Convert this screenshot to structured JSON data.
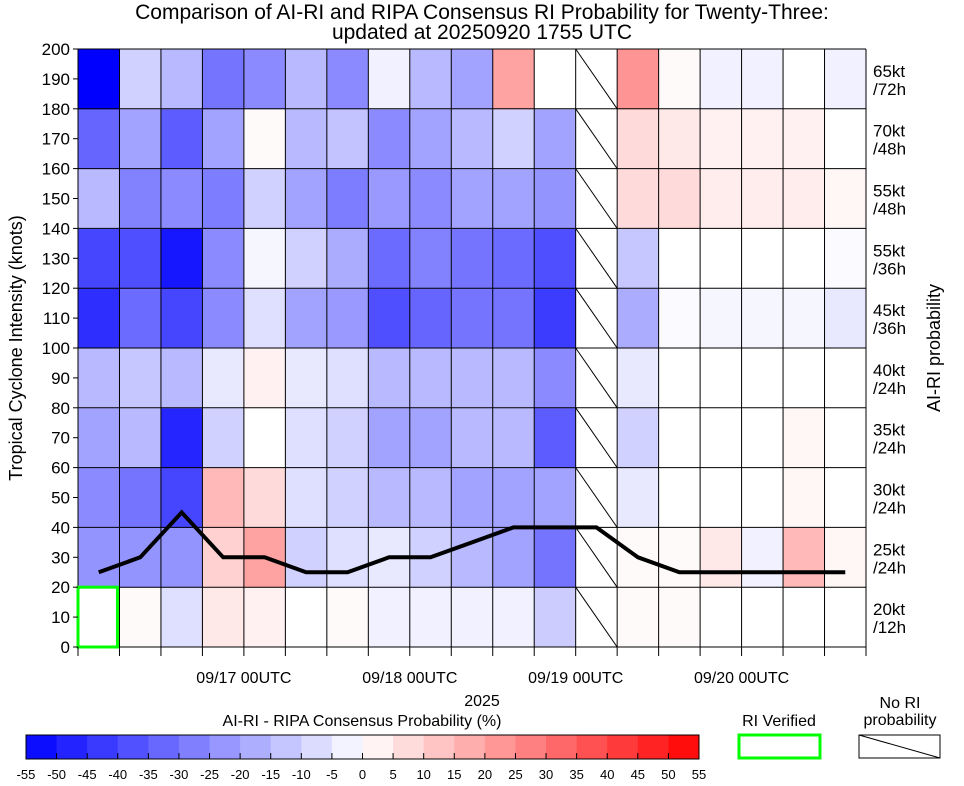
{
  "chart_data": {
    "type": "heatmap",
    "title": "Comparison of AI-RI and RIPA Consensus RI Probability for Twenty-Three:",
    "subtitle": "updated at 20250920 1755 UTC",
    "ylabel": "Tropical Cyclone Intensity (knots)",
    "ylim": [
      0,
      200
    ],
    "y_ticks": [
      0,
      10,
      20,
      30,
      40,
      50,
      60,
      70,
      80,
      90,
      100,
      110,
      120,
      130,
      140,
      150,
      160,
      170,
      180,
      190,
      200
    ],
    "xlabel": "2025",
    "x_tick_labels": [
      {
        "col": 4,
        "label": "09/17 00UTC"
      },
      {
        "col": 8,
        "label": "09/18 00UTC"
      },
      {
        "col": 12,
        "label": "09/19 00UTC"
      },
      {
        "col": 16,
        "label": "09/20 00UTC"
      }
    ],
    "n_columns": 19,
    "right_axis_label": "AI-RI probability",
    "rows": [
      {
        "label_line1": "20kt",
        "label_line2": "/12h"
      },
      {
        "label_line1": "25kt",
        "label_line2": "/24h"
      },
      {
        "label_line1": "30kt",
        "label_line2": "/24h"
      },
      {
        "label_line1": "35kt",
        "label_line2": "/24h"
      },
      {
        "label_line1": "40kt",
        "label_line2": "/24h"
      },
      {
        "label_line1": "45kt",
        "label_line2": "/36h"
      },
      {
        "label_line1": "55kt",
        "label_line2": "/36h"
      },
      {
        "label_line1": "55kt",
        "label_line2": "/48h"
      },
      {
        "label_line1": "70kt",
        "label_line2": "/48h"
      },
      {
        "label_line1": "65kt",
        "label_line2": "/72h"
      }
    ],
    "values": [
      [
        0,
        1,
        -7,
        5,
        3,
        0,
        1,
        -3,
        -3,
        -3,
        -3,
        -11,
        null,
        1,
        1,
        0,
        0,
        0,
        0
      ],
      [
        -23,
        -23,
        -23,
        10,
        20,
        -10,
        -7,
        -5,
        -10,
        -15,
        -20,
        -30,
        null,
        1,
        1,
        5,
        -3,
        15,
        2
      ],
      [
        -25,
        -30,
        -40,
        15,
        8,
        -7,
        -10,
        -15,
        -15,
        -20,
        -20,
        -20,
        null,
        -5,
        0,
        0,
        0,
        2,
        0
      ],
      [
        -20,
        -15,
        -47,
        -10,
        0,
        -7,
        -10,
        -20,
        -20,
        -15,
        -15,
        -35,
        null,
        -10,
        0,
        0,
        0,
        2,
        0
      ],
      [
        -15,
        -12,
        -15,
        -5,
        3,
        -5,
        -7,
        -15,
        -15,
        -15,
        -15,
        -25,
        null,
        -5,
        0,
        0,
        0,
        0,
        0
      ],
      [
        -45,
        -32,
        -40,
        -25,
        -7,
        -20,
        -22,
        -38,
        -33,
        -30,
        -30,
        -42,
        null,
        -18,
        -1,
        -2,
        -2,
        -2,
        -5
      ],
      [
        -40,
        -38,
        -50,
        -25,
        -2,
        -10,
        -18,
        -32,
        -27,
        -30,
        -32,
        -38,
        null,
        -12,
        0,
        0,
        0,
        0,
        -1
      ],
      [
        -15,
        -27,
        -25,
        -28,
        -10,
        -20,
        -28,
        -22,
        -25,
        -20,
        -20,
        -23,
        null,
        8,
        8,
        4,
        4,
        4,
        2
      ],
      [
        -33,
        -20,
        -35,
        -20,
        1,
        -15,
        -13,
        -25,
        -20,
        -15,
        -10,
        -20,
        null,
        8,
        5,
        3,
        3,
        3,
        0
      ],
      [
        -55,
        -10,
        -15,
        -30,
        -25,
        -15,
        -25,
        -3,
        -15,
        -20,
        20,
        0,
        null,
        23,
        1,
        -3,
        -3,
        0,
        -3
      ]
    ],
    "no_ri_columns": [
      12
    ],
    "verified_cells": [
      {
        "col": 0,
        "row": 0
      }
    ],
    "intensity_line": {
      "name": "Tropical Cyclone Intensity",
      "x": [
        0,
        1,
        2,
        3,
        4,
        5,
        6,
        7,
        8,
        9,
        10,
        11,
        12,
        13,
        14,
        15,
        16,
        17,
        18
      ],
      "y": [
        25,
        30,
        45,
        30,
        30,
        25,
        25,
        30,
        30,
        35,
        40,
        40,
        40,
        30,
        25,
        25,
        25,
        25,
        25
      ]
    },
    "colorbar": {
      "label": "AI-RI - RIPA Consensus Probability (%)",
      "min": -55,
      "max": 55,
      "tick_labels": [
        "-55",
        "-50",
        "-45",
        "-40",
        "-35",
        "-30",
        "-25",
        "-20",
        "-15",
        "-10",
        "-5",
        "0",
        "5",
        "10",
        "15",
        "20",
        "25",
        "30",
        "35",
        "40",
        "45",
        "50",
        "55"
      ]
    },
    "legend": {
      "verified_label": "RI Verified",
      "no_ri_label_line1": "No RI",
      "no_ri_label_line2": "probability"
    }
  }
}
